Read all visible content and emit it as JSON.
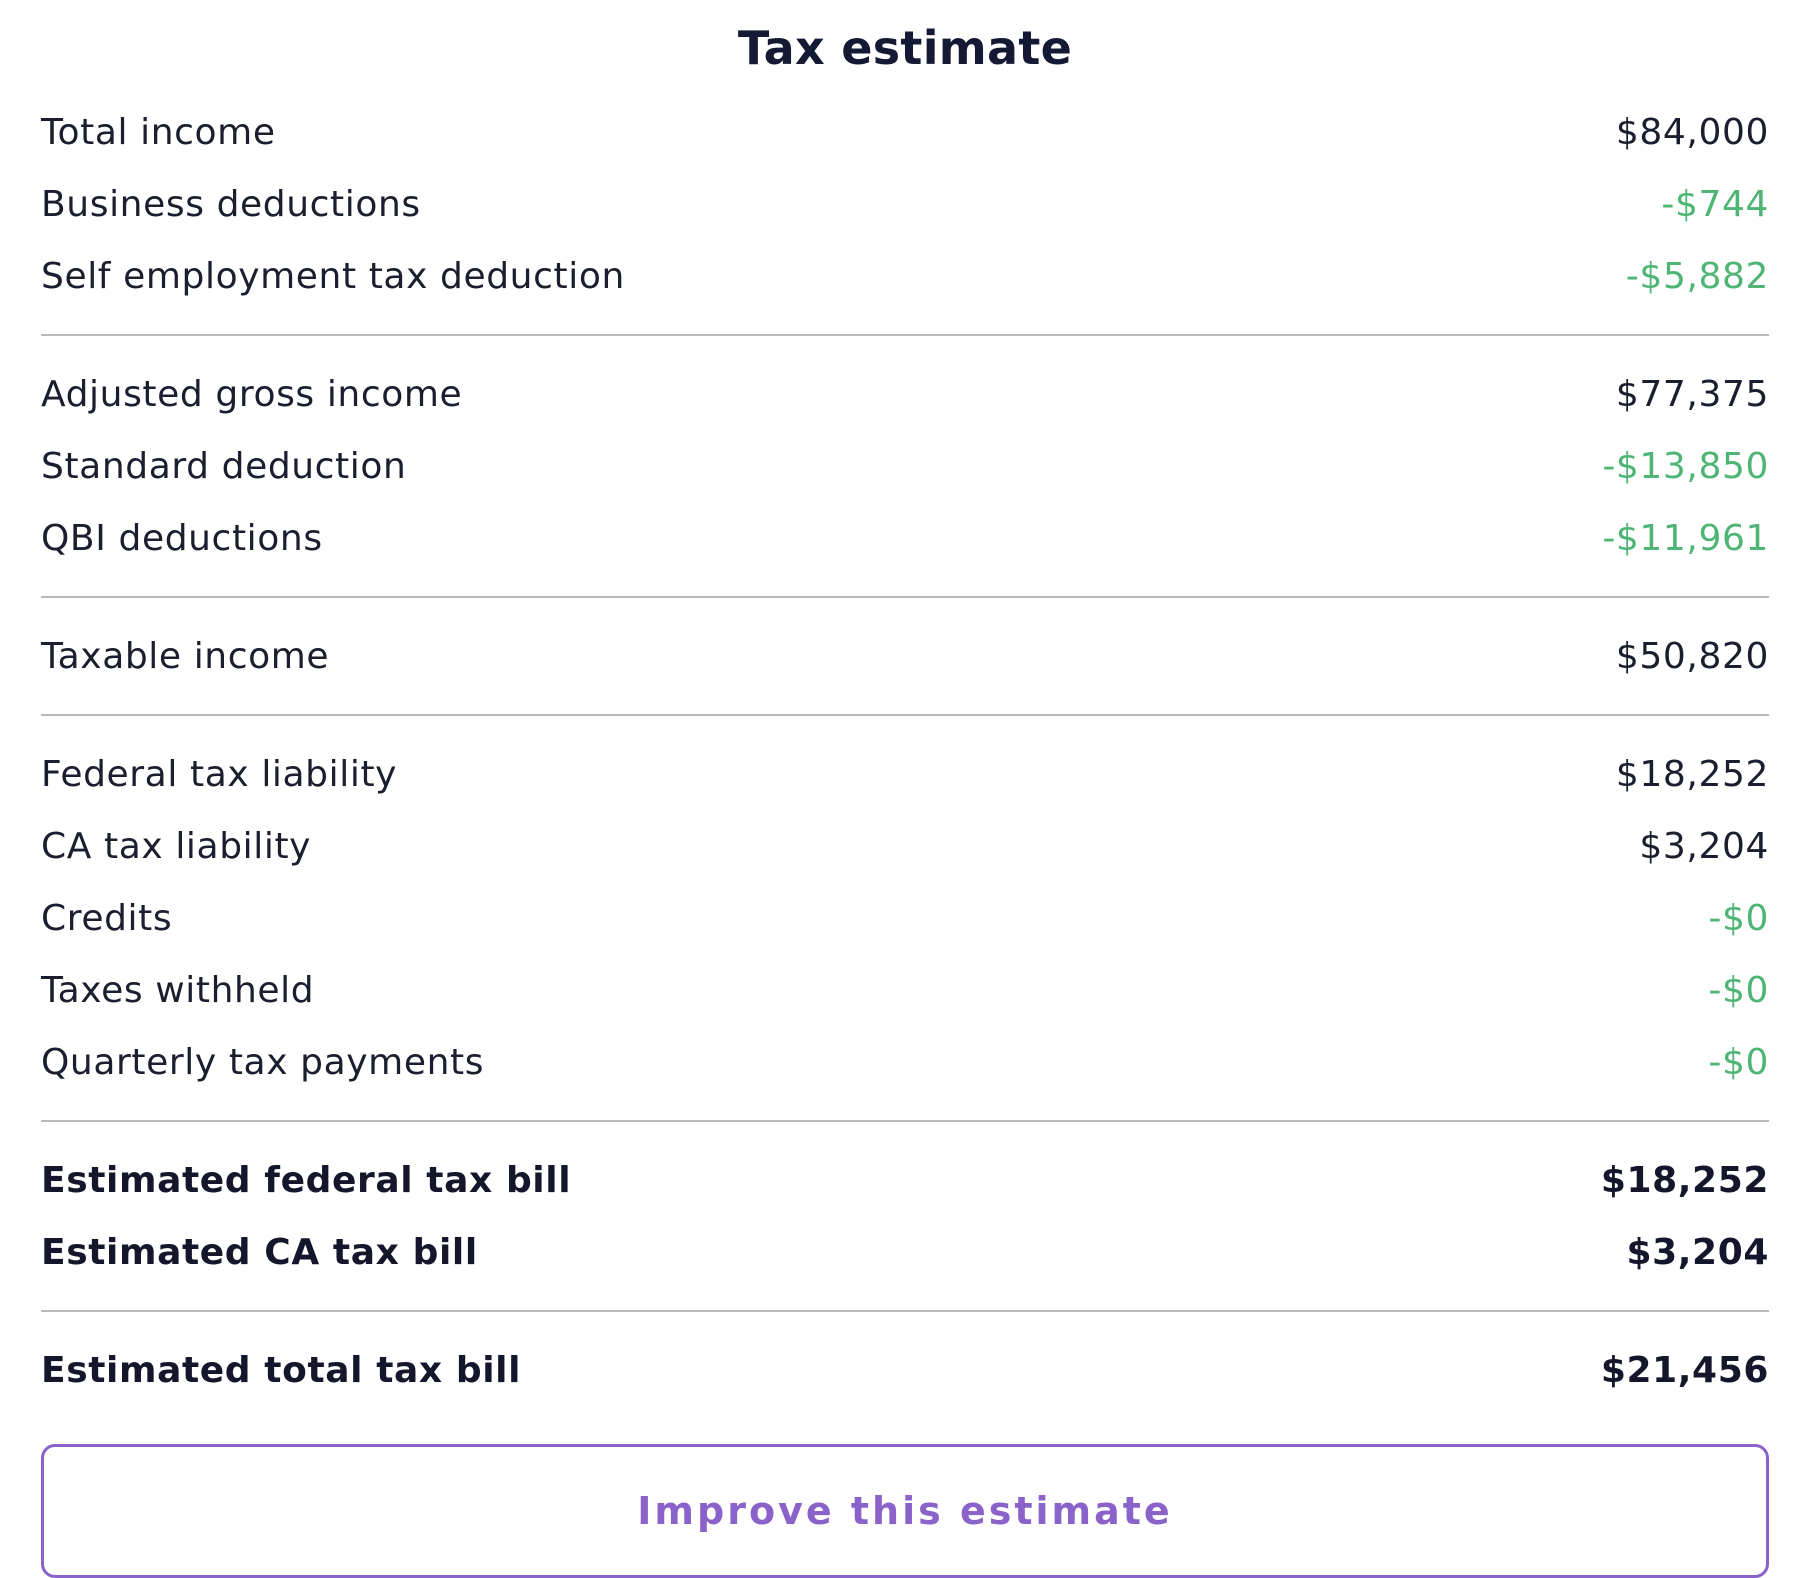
{
  "title": "Tax estimate",
  "colors": {
    "text": "#1b1e2e",
    "negative": "#4fb574",
    "accent": "#8a62c9",
    "divider": "#b9b9b9"
  },
  "sections": [
    {
      "rows": [
        {
          "label": "Total income",
          "value": "$84,000",
          "negative": false
        },
        {
          "label": "Business deductions",
          "value": "-$744",
          "negative": true
        },
        {
          "label": "Self employment tax deduction",
          "value": "-$5,882",
          "negative": true
        }
      ]
    },
    {
      "rows": [
        {
          "label": "Adjusted gross income",
          "value": "$77,375",
          "negative": false
        },
        {
          "label": "Standard deduction",
          "value": "-$13,850",
          "negative": true
        },
        {
          "label": "QBI deductions",
          "value": "-$11,961",
          "negative": true
        }
      ]
    },
    {
      "rows": [
        {
          "label": "Taxable income",
          "value": "$50,820",
          "negative": false
        }
      ]
    },
    {
      "rows": [
        {
          "label": "Federal tax liability",
          "value": "$18,252",
          "negative": false
        },
        {
          "label": "CA tax liability",
          "value": "$3,204",
          "negative": false
        },
        {
          "label": "Credits",
          "value": "-$0",
          "negative": true
        },
        {
          "label": "Taxes withheld",
          "value": "-$0",
          "negative": true
        },
        {
          "label": "Quarterly tax payments",
          "value": "-$0",
          "negative": true
        }
      ]
    },
    {
      "rows": [
        {
          "label": "Estimated federal tax bill",
          "value": "$18,252",
          "negative": false
        },
        {
          "label": "Estimated CA tax bill",
          "value": "$3,204",
          "negative": false
        }
      ]
    },
    {
      "rows": [
        {
          "label": "Estimated total tax bill",
          "value": "$21,456",
          "negative": false
        }
      ]
    }
  ],
  "button": {
    "label": "Improve this estimate"
  }
}
